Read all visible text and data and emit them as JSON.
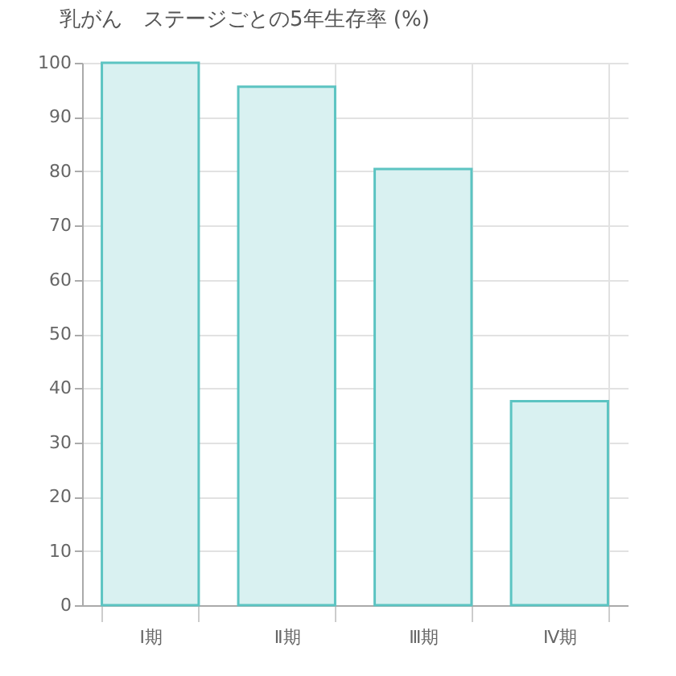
{
  "chart_data": {
    "type": "bar",
    "title": "乳がん　ステージごとの5年生存率 (%)",
    "categories": [
      "Ⅰ期",
      "Ⅱ期",
      "Ⅲ期",
      "Ⅳ期"
    ],
    "values": [
      100,
      95.6,
      80.4,
      37.6
    ],
    "color": "#d9f1f1",
    "ylim": [
      0,
      100
    ],
    "yticks": [
      0,
      10,
      20,
      30,
      40,
      50,
      60,
      70,
      80,
      90,
      100
    ],
    "grid": true
  }
}
